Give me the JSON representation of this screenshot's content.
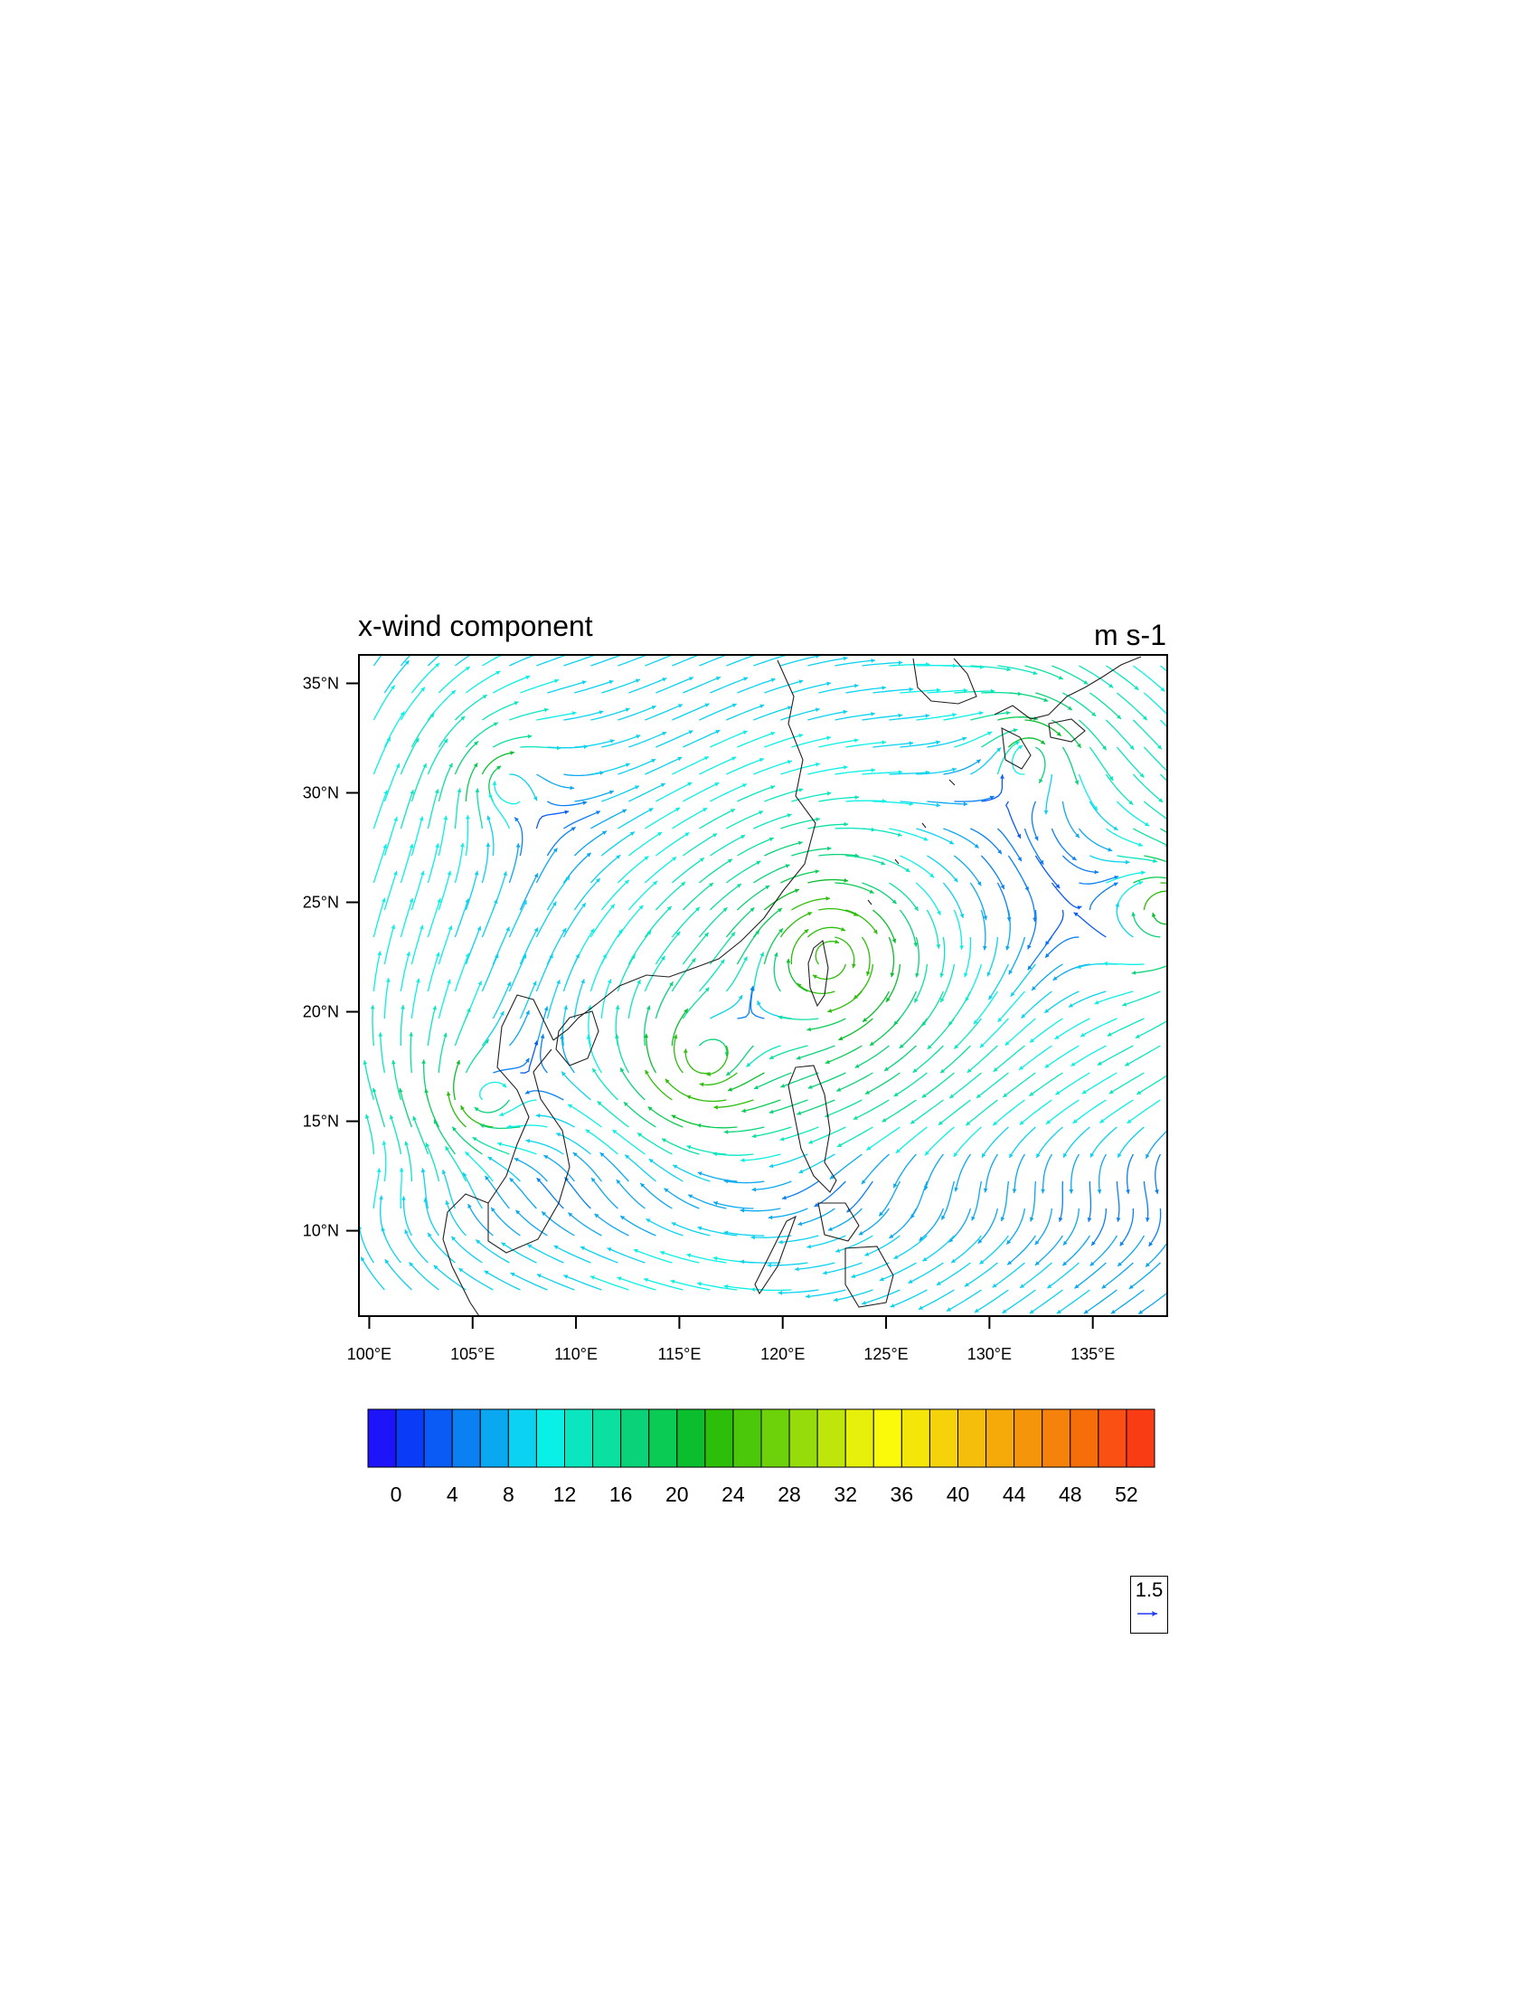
{
  "title": "x-wind component",
  "units": "m s-1",
  "map": {
    "projection": "lat-lon",
    "lon_range": [
      99.5,
      138.6
    ],
    "lat_range": [
      6.1,
      36.3
    ],
    "lon_ticks": [
      {
        "value": 100,
        "label": "100°E"
      },
      {
        "value": 105,
        "label": "105°E"
      },
      {
        "value": 110,
        "label": "110°E"
      },
      {
        "value": 115,
        "label": "115°E"
      },
      {
        "value": 120,
        "label": "120°E"
      },
      {
        "value": 125,
        "label": "125°E"
      },
      {
        "value": 130,
        "label": "130°E"
      },
      {
        "value": 135,
        "label": "135°E"
      }
    ],
    "lat_ticks": [
      {
        "value": 35,
        "label": "35°N"
      },
      {
        "value": 30,
        "label": "30°N"
      },
      {
        "value": 25,
        "label": "25°N"
      },
      {
        "value": 20,
        "label": "20°N"
      },
      {
        "value": 15,
        "label": "15°N"
      },
      {
        "value": 10,
        "label": "10°N"
      }
    ],
    "field": "streamlines colored by wind speed",
    "circulations": [
      {
        "lon": 122.3,
        "lat": 22.5,
        "strength": 18
      },
      {
        "lon": 116.2,
        "lat": 17.8,
        "strength": 13
      },
      {
        "lon": 105.5,
        "lat": 16.0,
        "strength": 9
      },
      {
        "lon": 106.5,
        "lat": 30.5,
        "strength": 7
      },
      {
        "lon": 132.0,
        "lat": 31.8,
        "strength": 8
      },
      {
        "lon": 138.8,
        "lat": 24.5,
        "strength": 14
      }
    ]
  },
  "colorbar": {
    "labels": [
      "0",
      "4",
      "8",
      "12",
      "16",
      "20",
      "24",
      "28",
      "32",
      "36",
      "40",
      "44",
      "48",
      "52"
    ],
    "min": -2,
    "max": 54,
    "step": 2,
    "colors": [
      "#1e14fa",
      "#0a3cf8",
      "#0a5af5",
      "#0a80f2",
      "#0aa8f0",
      "#0ad2f0",
      "#0af0e6",
      "#0ae6c0",
      "#0ae0a0",
      "#0ad278",
      "#0acc55",
      "#0abe2d",
      "#2dbe0a",
      "#4bc80a",
      "#6ed20a",
      "#96dc0a",
      "#bee60a",
      "#e6f00a",
      "#fafa0a",
      "#f5e60a",
      "#f5d20a",
      "#f5be0a",
      "#f5aa0a",
      "#f5960a",
      "#f5820a",
      "#f56e0a",
      "#fa5014",
      "#fa3c14"
    ]
  },
  "reference_vector": {
    "label": "1.5",
    "color": "#1e3cfa"
  }
}
